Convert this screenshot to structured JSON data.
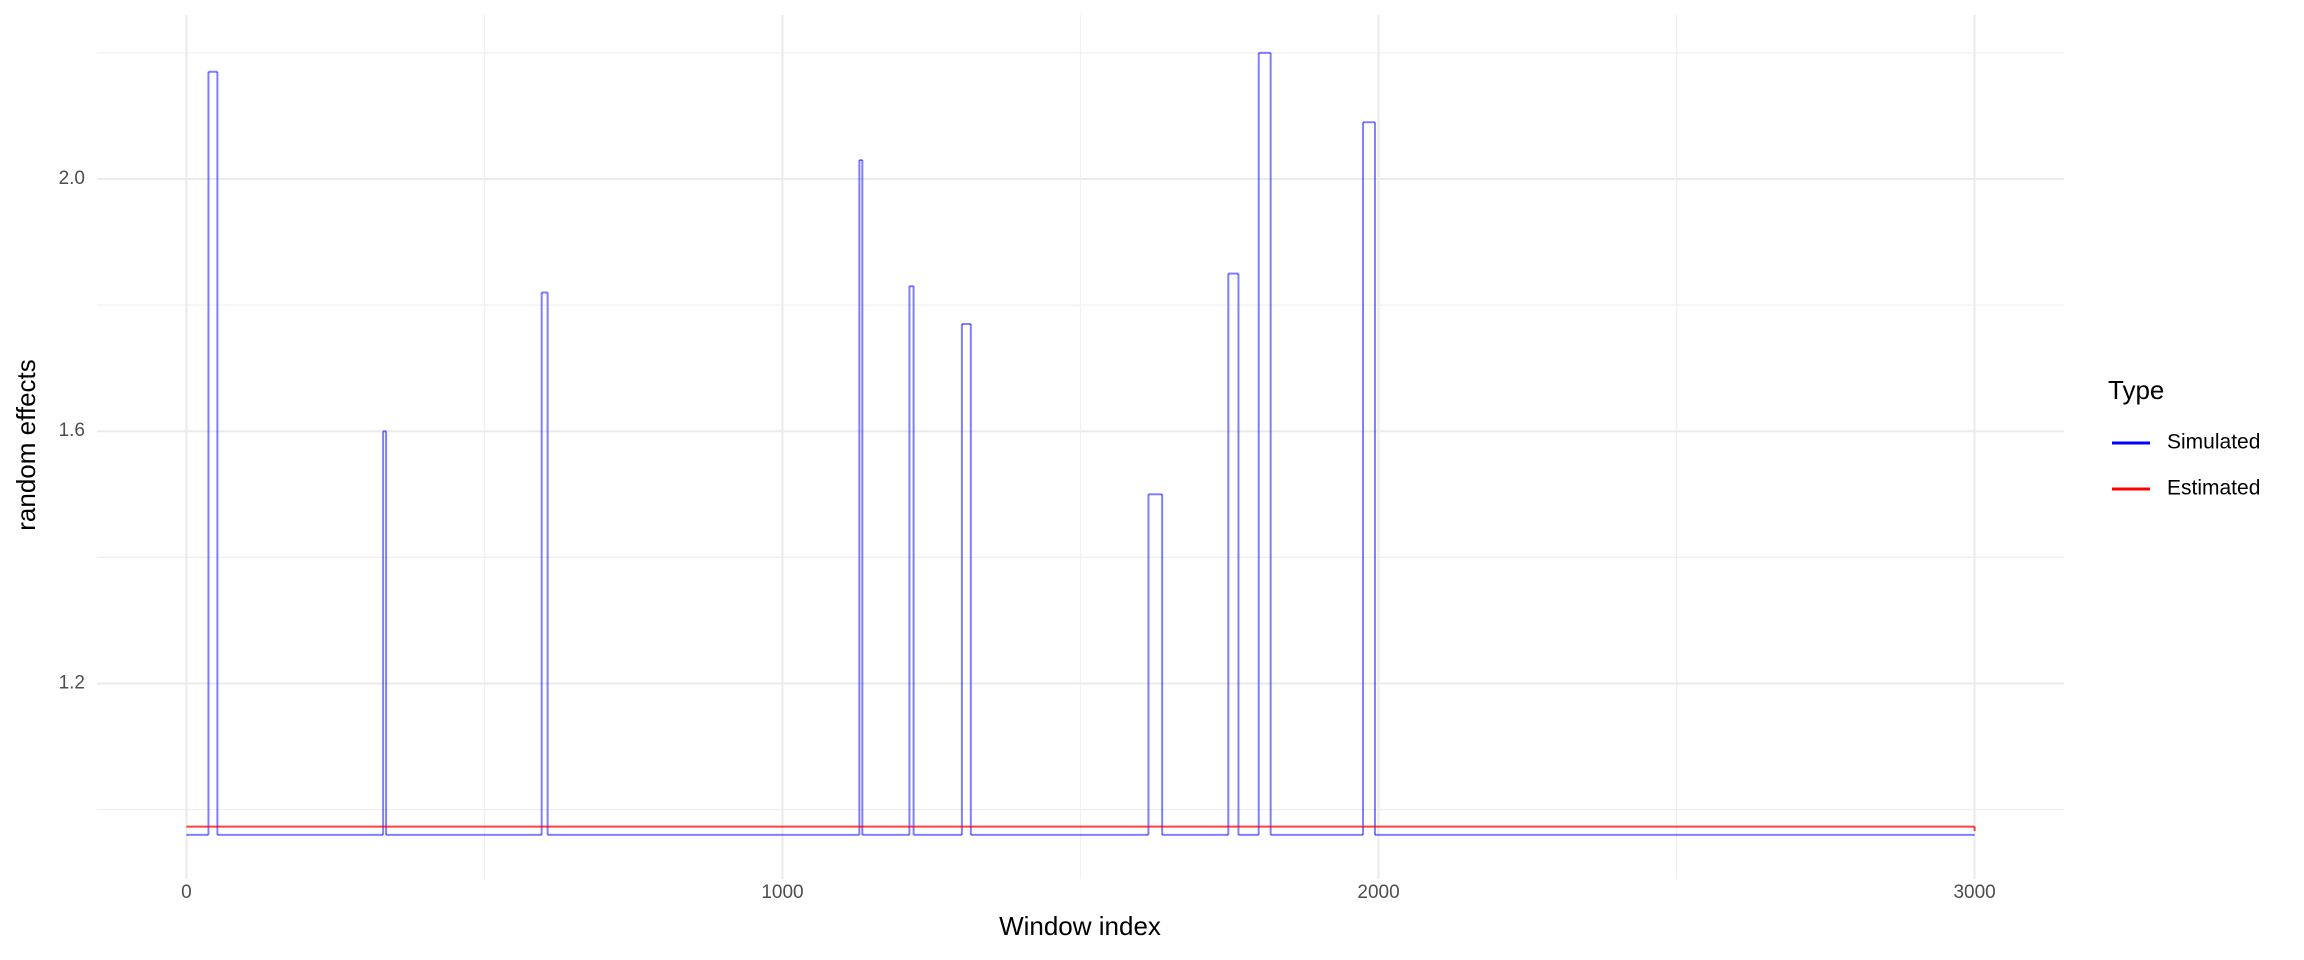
{
  "chart_data": {
    "type": "line",
    "step": "hv",
    "x_label": "Window index",
    "y_label": "random effects",
    "legend_title": "Type",
    "legend_position": "right",
    "grid": true,
    "xlim": [
      -150,
      3150
    ],
    "ylim": [
      0.89,
      2.26
    ],
    "xticks": [
      0,
      1000,
      2000,
      3000
    ],
    "yticks": [
      1.2,
      1.6,
      {
        "value": 2.0,
        "label": "2.0"
      }
    ],
    "x_minor_grid": [
      500,
      1500,
      2500
    ],
    "y_minor_grid": [
      1.0,
      1.4,
      1.8,
      2.2
    ],
    "series": [
      {
        "name": "Simulated",
        "color": "#0000ff",
        "alpha": 0.5,
        "x": [
          0,
          37,
          52,
          330,
          335,
          596,
          606,
          1129,
          1134,
          1213,
          1220,
          1301,
          1316,
          1614,
          1637,
          1748,
          1765,
          1799,
          1819,
          1974,
          1994,
          3000
        ],
        "values": [
          0.96,
          2.17,
          0.96,
          1.6,
          0.96,
          1.82,
          0.96,
          2.03,
          0.96,
          1.83,
          0.96,
          1.77,
          0.96,
          1.5,
          0.96,
          1.85,
          0.96,
          2.2,
          0.96,
          2.09,
          0.96,
          0.96
        ]
      },
      {
        "name": "Estimated",
        "color": "#ff0000",
        "alpha": 0.75,
        "x": [
          0,
          3000
        ],
        "values": [
          0.973,
          0.966
        ]
      }
    ]
  }
}
